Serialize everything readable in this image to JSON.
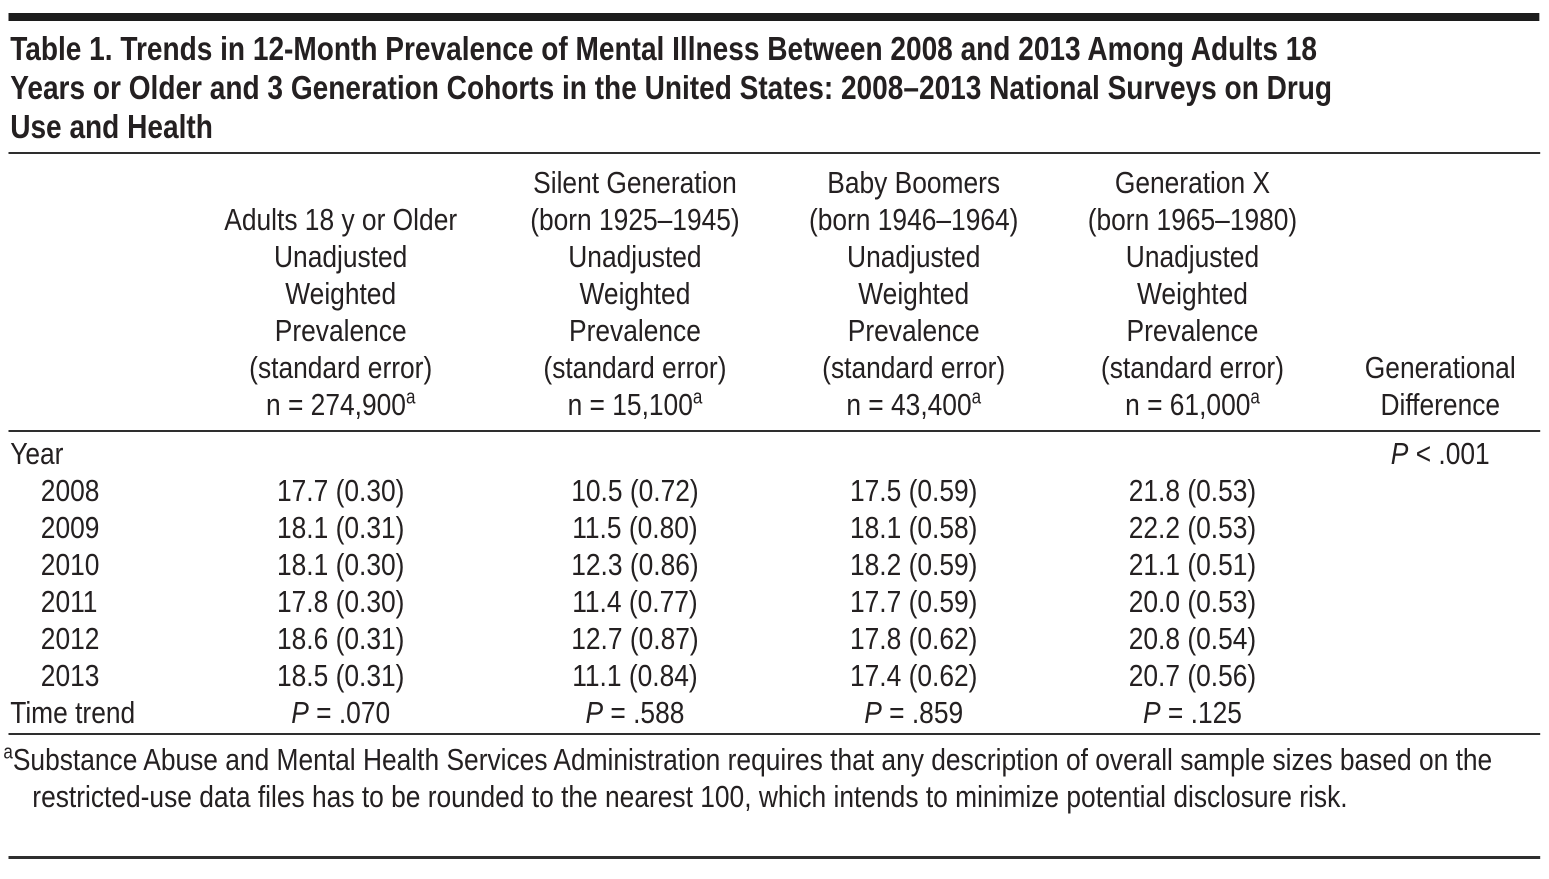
{
  "page": {
    "title": "Table 1. Trends in 12-Month Prevalence of Mental Illness Between 2008 and 2013 Among Adults 18 Years or Older and 3 Generation Cohorts in the United States: 2008–2013 National Surveys on Drug Use and Health"
  },
  "table": {
    "columns": [
      {
        "key": "row-label",
        "lines": []
      },
      {
        "key": "adults-18-or-older",
        "lines": [
          "Adults 18 y or Older",
          "Unadjusted",
          "Weighted",
          "Prevalence",
          "(standard error)"
        ],
        "n": "n = 274,900",
        "n_sup": "a"
      },
      {
        "key": "silent-generation",
        "lines": [
          "Silent Generation",
          "(born 1925–1945)",
          "Unadjusted",
          "Weighted",
          "Prevalence",
          "(standard error)"
        ],
        "n": "n = 15,100",
        "n_sup": "a"
      },
      {
        "key": "baby-boomers",
        "lines": [
          "Baby Boomers",
          "(born 1946–1964)",
          "Unadjusted",
          "Weighted",
          "Prevalence",
          "(standard error)"
        ],
        "n": "n = 43,400",
        "n_sup": "a"
      },
      {
        "key": "generation-x",
        "lines": [
          "Generation X",
          "(born 1965–1980)",
          "Unadjusted",
          "Weighted",
          "Prevalence",
          "(standard error)"
        ],
        "n": "n = 61,000",
        "n_sup": "a"
      },
      {
        "key": "generational-difference",
        "lines": [
          "Generational",
          "Difference"
        ]
      }
    ],
    "rows": [
      {
        "label": "Year",
        "indent": false,
        "cells": [
          "",
          "",
          "",
          ""
        ],
        "diff": {
          "sym": "P",
          "rest": " < .001"
        }
      },
      {
        "label": "2008",
        "indent": true,
        "cells": [
          "17.7 (0.30)",
          "10.5 (0.72)",
          "17.5 (0.59)",
          "21.8 (0.53)"
        ],
        "diff": null
      },
      {
        "label": "2009",
        "indent": true,
        "cells": [
          "18.1 (0.31)",
          "11.5 (0.80)",
          "18.1 (0.58)",
          "22.2 (0.53)"
        ],
        "diff": null
      },
      {
        "label": "2010",
        "indent": true,
        "cells": [
          "18.1 (0.30)",
          "12.3 (0.86)",
          "18.2 (0.59)",
          "21.1 (0.51)"
        ],
        "diff": null
      },
      {
        "label": "2011",
        "indent": true,
        "cells": [
          "17.8 (0.30)",
          "11.4 (0.77)",
          "17.7 (0.59)",
          "20.0 (0.53)"
        ],
        "diff": null
      },
      {
        "label": "2012",
        "indent": true,
        "cells": [
          "18.6 (0.31)",
          "12.7 (0.87)",
          "17.8 (0.62)",
          "20.8 (0.54)"
        ],
        "diff": null
      },
      {
        "label": "2013",
        "indent": true,
        "cells": [
          "18.5 (0.31)",
          "11.1 (0.84)",
          "17.4 (0.62)",
          "20.7 (0.56)"
        ],
        "diff": null
      },
      {
        "label": "Time trend",
        "indent": false,
        "cells": [
          {
            "sym": "P",
            "rest": " = .070"
          },
          {
            "sym": "P",
            "rest": " = .588"
          },
          {
            "sym": "P",
            "rest": " = .859"
          },
          {
            "sym": "P",
            "rest": " = .125"
          }
        ],
        "diff": null
      }
    ],
    "footnote": {
      "marker": "a",
      "text": "Substance Abuse and Mental Health Services Administration requires that any description of overall sample sizes based on the restricted-use data files has to be rounded to the nearest 100, which intends to minimize potential disclosure risk."
    }
  },
  "chart_data": {
    "type": "table",
    "title": "Table 1. Trends in 12-Month Prevalence of Mental Illness Between 2008 and 2013 Among Adults 18 Years or Older and 3 Generation Cohorts in the United States: 2008–2013 National Surveys on Drug Use and Health",
    "categories": [
      "2008",
      "2009",
      "2010",
      "2011",
      "2012",
      "2013"
    ],
    "series": [
      {
        "name": "Adults 18 y or Older",
        "n": "274,900",
        "values": [
          17.7,
          18.1,
          18.1,
          17.8,
          18.6,
          18.5
        ],
        "standard_errors": [
          0.3,
          0.31,
          0.3,
          0.3,
          0.31,
          0.31
        ],
        "time_trend_p": ".070"
      },
      {
        "name": "Silent Generation (born 1925–1945)",
        "n": "15,100",
        "values": [
          10.5,
          11.5,
          12.3,
          11.4,
          12.7,
          11.1
        ],
        "standard_errors": [
          0.72,
          0.8,
          0.86,
          0.77,
          0.87,
          0.84
        ],
        "time_trend_p": ".588"
      },
      {
        "name": "Baby Boomers (born 1946–1964)",
        "n": "43,400",
        "values": [
          17.5,
          18.1,
          18.2,
          17.7,
          17.8,
          17.4
        ],
        "standard_errors": [
          0.59,
          0.58,
          0.59,
          0.59,
          0.62,
          0.62
        ],
        "time_trend_p": ".859"
      },
      {
        "name": "Generation X (born 1965–1980)",
        "n": "61,000",
        "values": [
          21.8,
          22.2,
          21.1,
          20.0,
          20.8,
          20.7
        ],
        "standard_errors": [
          0.53,
          0.53,
          0.51,
          0.53,
          0.54,
          0.56
        ],
        "time_trend_p": ".125"
      }
    ],
    "generational_difference_p": "P < .001"
  }
}
